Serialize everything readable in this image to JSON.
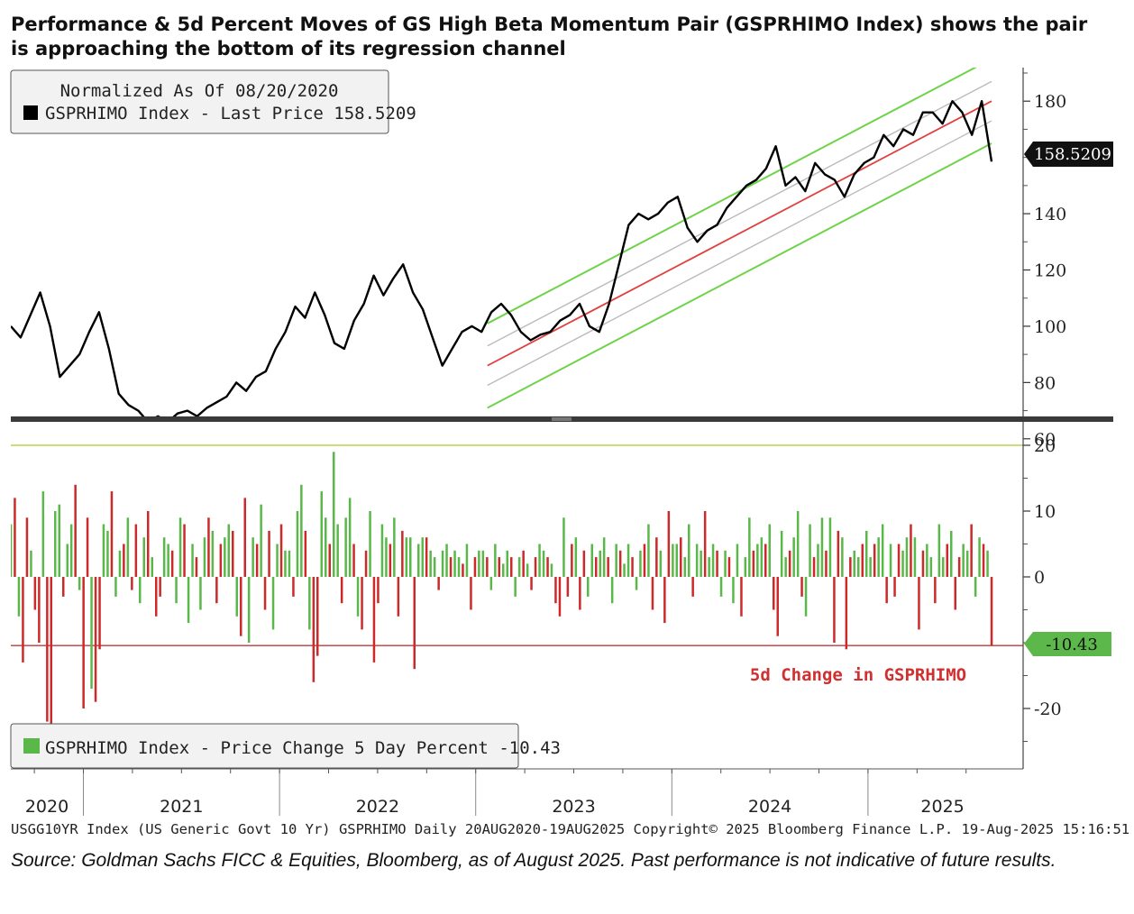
{
  "title_text": "Performance & 5d Percent Moves of GS High Beta Momentum Pair (GSPRHIMO Index) shows the pair is approaching the bottom of its regression channel",
  "source_text": "Source: Goldman Sachs FICC & Equities, Bloomberg, as of August 2025. Past performance is not indicative of future results.",
  "footer_text": "USGG10YR Index (US Generic Govt 10 Yr) GSPRHIMO  Daily 20AUG2020-19AUG2025   Copyright© 2025 Bloomberg Finance L.P.   19-Aug-2025 15:16:51",
  "colors": {
    "price_line": "#000000",
    "channel_outer": "#6fd34a",
    "channel_inner": "#bbbbbb",
    "regression": "#e04040",
    "bar_up": "#5ab84a",
    "bar_down": "#cc2a2a",
    "ref_line_upper": "#b8d44a",
    "ref_line_lower": "#c03a3a",
    "annotation": "#d03030"
  },
  "chart_data": [
    {
      "type": "line",
      "legend": {
        "line1": "Normalized As Of 08/20/2020",
        "line2": "GSPRHIMO Index - Last Price 158.5209",
        "placement": "top-left"
      },
      "last_value_label": "158.5209",
      "x_labels": [
        "2020",
        "2021",
        "2022",
        "2023",
        "2024",
        "2025"
      ],
      "x_label_dates": [
        2020.63,
        2021.5,
        2022.5,
        2023.5,
        2024.5,
        2025.38
      ],
      "ylim": [
        50,
        190
      ],
      "y_ticks": [
        60,
        80,
        100,
        120,
        140,
        180
      ],
      "y_tick_labels": [
        "60",
        "80",
        "100",
        "120",
        "140",
        "180"
      ],
      "regression_channel": {
        "x_start": 2023.06,
        "x_end": 2025.63,
        "center_start": 86,
        "center_end": 180,
        "offsets": [
          -15,
          -7,
          0,
          7,
          15
        ]
      },
      "series": [
        {
          "x": [
            2020.63,
            2020.68,
            2020.73,
            2020.78,
            2020.83,
            2020.88,
            2020.93,
            2020.98,
            2021.03,
            2021.08,
            2021.13,
            2021.18,
            2021.23,
            2021.28,
            2021.33,
            2021.38,
            2021.43,
            2021.48,
            2021.53,
            2021.58,
            2021.63,
            2021.68,
            2021.73,
            2021.78,
            2021.83,
            2021.88,
            2021.93,
            2021.98,
            2022.03,
            2022.08,
            2022.13,
            2022.18,
            2022.23,
            2022.28,
            2022.33,
            2022.38,
            2022.43,
            2022.48,
            2022.53,
            2022.58,
            2022.63,
            2022.68,
            2022.73,
            2022.78,
            2022.83,
            2022.88,
            2022.93,
            2022.98,
            2023.03,
            2023.08,
            2023.13,
            2023.18,
            2023.23,
            2023.28,
            2023.33,
            2023.38,
            2023.43,
            2023.48,
            2023.53,
            2023.58,
            2023.63,
            2023.68,
            2023.73,
            2023.78,
            2023.83,
            2023.88,
            2023.93,
            2023.98,
            2024.03,
            2024.08,
            2024.13,
            2024.18,
            2024.23,
            2024.28,
            2024.33,
            2024.38,
            2024.43,
            2024.48,
            2024.53,
            2024.58,
            2024.63,
            2024.68,
            2024.73,
            2024.78,
            2024.83,
            2024.88,
            2024.93,
            2024.98,
            2025.03,
            2025.08,
            2025.13,
            2025.18,
            2025.23,
            2025.28,
            2025.33,
            2025.38,
            2025.43,
            2025.48,
            2025.53,
            2025.58,
            2025.63
          ],
          "values": [
            100,
            96,
            104,
            112,
            100,
            82,
            86,
            90,
            98,
            105,
            92,
            76,
            72,
            70,
            66,
            68,
            66,
            69,
            70,
            68,
            71,
            73,
            75,
            80,
            77,
            82,
            84,
            92,
            98,
            107,
            103,
            112,
            104,
            94,
            92,
            102,
            108,
            118,
            111,
            117,
            122,
            112,
            106,
            96,
            86,
            92,
            98,
            100,
            98,
            105,
            108,
            104,
            98,
            95,
            97,
            98,
            102,
            104,
            108,
            100,
            98,
            108,
            122,
            136,
            140,
            138,
            140,
            144,
            146,
            135,
            130,
            134,
            136,
            142,
            146,
            150,
            152,
            156,
            164,
            150,
            153,
            148,
            158,
            154,
            152,
            146,
            154,
            158,
            160,
            168,
            164,
            170,
            168,
            176,
            176,
            172,
            180,
            176,
            168,
            180,
            158.5
          ]
        }
      ]
    },
    {
      "type": "bar",
      "legend": {
        "label": "GSPRHIMO Index - Price Change 5 Day Percent -10.43",
        "placement": "bottom-left"
      },
      "last_value_label": "-10.43",
      "annotation": "5d Change in GSPRHIMO",
      "ylim": [
        -30,
        21.5
      ],
      "y_ticks": [
        20,
        10,
        0,
        -20
      ],
      "y_tick_labels": [
        "20",
        "10",
        "0",
        "-20"
      ],
      "reference_lines": [
        20,
        -10.43
      ],
      "x_range": [
        2020.63,
        2025.63
      ],
      "series": [
        {
          "values": [
            8,
            12,
            -6,
            -13,
            9,
            4,
            -5,
            -10,
            13,
            -22,
            -28,
            10,
            11,
            -3,
            5,
            8,
            14,
            -2,
            -20,
            9,
            -17,
            -19,
            -11,
            8,
            7,
            13,
            -3,
            4,
            5,
            9,
            -2,
            8,
            -4,
            6,
            10,
            3,
            -6,
            -3,
            6,
            5,
            4,
            -4,
            9,
            8,
            -7,
            5,
            3,
            -5,
            6,
            9,
            7,
            -4,
            5,
            6,
            8,
            7,
            -6,
            -9,
            12,
            -10,
            6,
            5,
            11,
            -5,
            7,
            -8,
            5,
            8,
            4,
            4,
            -3,
            10,
            14,
            7,
            -8,
            -16,
            -12,
            13,
            9,
            5,
            19,
            8,
            -4,
            9,
            12,
            5,
            -6,
            -8,
            4,
            10,
            -13,
            -4,
            8,
            6,
            5,
            9,
            -6,
            7,
            6,
            6,
            -14,
            5,
            6,
            6,
            4,
            3,
            -2,
            4,
            5,
            3,
            4,
            3,
            2,
            5,
            -5,
            3,
            4,
            4,
            3,
            -2,
            5,
            3,
            2,
            4,
            3,
            -3,
            3,
            4,
            2,
            -2,
            3,
            5,
            4,
            3,
            2,
            -4,
            -6,
            9,
            -3,
            5,
            6,
            -5,
            4,
            -3,
            5,
            3,
            4,
            6,
            3,
            -4,
            5,
            4,
            2,
            5,
            3,
            -2,
            4,
            5,
            8,
            -5,
            6,
            4,
            -7,
            10,
            5,
            5,
            6,
            3,
            8,
            -3,
            5,
            4,
            10,
            3,
            5,
            4,
            -3,
            4,
            3,
            -4,
            5,
            -6,
            3,
            9,
            4,
            5,
            6,
            5,
            8,
            -5,
            -9,
            7,
            3,
            4,
            6,
            10,
            -3,
            -6,
            8,
            3,
            5,
            9,
            4,
            9,
            -10,
            7,
            6,
            -11,
            3,
            4,
            3,
            5,
            7,
            3,
            5,
            6,
            8,
            -4,
            5,
            -3,
            5,
            4,
            6,
            8,
            6,
            -8,
            4,
            5,
            3,
            -4,
            8,
            3,
            5,
            7,
            -5,
            3,
            5,
            4,
            8,
            -3,
            6,
            5,
            4,
            -10.43
          ]
        }
      ]
    }
  ]
}
